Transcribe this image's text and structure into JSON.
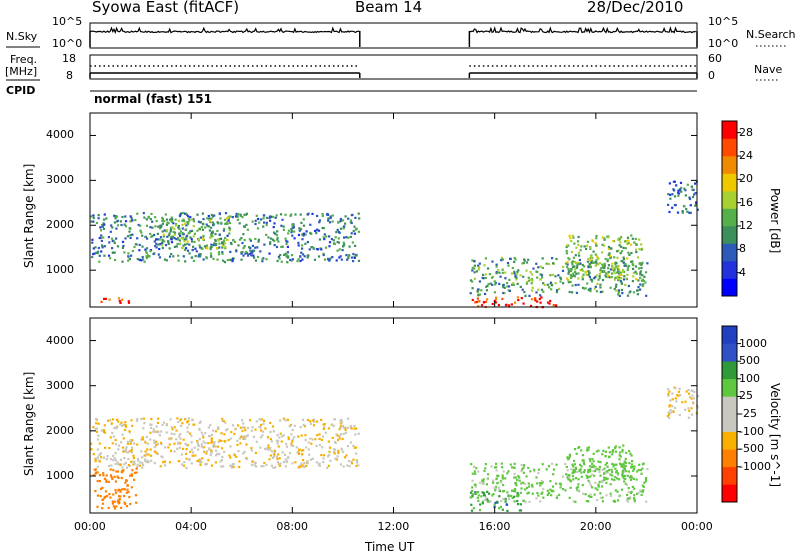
{
  "header": {
    "station": "Syowa East (fitACF)",
    "beam": "Beam 14",
    "date": "28/Dec/2010"
  },
  "top_panels": {
    "nsky_label": "N.Sky",
    "nsky_ticks": [
      "10^5",
      "10^0"
    ],
    "nsearch_label": "N.Search",
    "nsearch_ticks": [
      "10^5",
      "10^0"
    ],
    "freq_label": "Freq.",
    "freq_unit": "[MHz]",
    "freq_ticks": [
      "18",
      "8"
    ],
    "nave_label": "Nave",
    "nave_ticks": [
      "60",
      "0"
    ],
    "cpid_label": "CPID",
    "cpid_value": "normal (fast) 151"
  },
  "colors": {
    "power": [
      "#0000ff",
      "#2233dd",
      "#2d5ab8",
      "#3a8f5a",
      "#56b04a",
      "#a8d030",
      "#f0c800",
      "#f08a00",
      "#ff4a00",
      "#ff0000"
    ],
    "velocity": [
      "#ff0000",
      "#ff4000",
      "#ff8000",
      "#f8b000",
      "#c8c8c0",
      "#c8c8c0",
      "#60c840",
      "#2e9a3a",
      "#3050c8",
      "#2040c0"
    ],
    "axis": "#000000"
  },
  "chart_data": [
    {
      "type": "heatmap",
      "title": "Power",
      "xlabel": "Time UT",
      "ylabel": "Slant Range [km]",
      "x_range": [
        "00:00",
        "24:00"
      ],
      "ylim": [
        180,
        4500
      ],
      "x_ticks": [
        "00:00",
        "04:00",
        "08:00",
        "12:00",
        "16:00",
        "20:00",
        "00:00"
      ],
      "y_ticks": [
        1000,
        2000,
        3000,
        4000
      ],
      "colorbar": {
        "label": "Power [dB]",
        "ticks": [
          4,
          8,
          12,
          16,
          20,
          24,
          28
        ],
        "range": [
          0,
          30
        ]
      },
      "data_gaps": [
        [
          "10:40",
          "15:00"
        ]
      ],
      "regions": [
        {
          "t": [
            0.0,
            10.6
          ],
          "r": [
            1200,
            2300
          ],
          "value": 10
        },
        {
          "t": [
            0.3,
            1.5
          ],
          "r": [
            250,
            400
          ],
          "value": 26
        },
        {
          "t": [
            2.8,
            5.5
          ],
          "r": [
            1500,
            2200
          ],
          "value": 14
        },
        {
          "t": [
            15.0,
            18.5
          ],
          "r": [
            200,
            420
          ],
          "value": 28
        },
        {
          "t": [
            15.0,
            22.0
          ],
          "r": [
            450,
            1300
          ],
          "value": 12
        },
        {
          "t": [
            18.8,
            21.8
          ],
          "r": [
            800,
            1800
          ],
          "value": 14
        },
        {
          "t": [
            22.8,
            24.0
          ],
          "r": [
            2300,
            3000
          ],
          "value": 8
        }
      ]
    },
    {
      "type": "heatmap",
      "title": "Velocity",
      "xlabel": "Time UT",
      "ylabel": "Slant Range [km]",
      "x_range": [
        "00:00",
        "24:00"
      ],
      "ylim": [
        180,
        4500
      ],
      "x_ticks": [
        "00:00",
        "04:00",
        "08:00",
        "12:00",
        "16:00",
        "20:00",
        "00:00"
      ],
      "y_ticks": [
        1000,
        2000,
        3000,
        4000
      ],
      "colorbar": {
        "label": "Velocity [m s^-1]",
        "ticks": [
          "1000",
          "500",
          "100",
          "25",
          "-25",
          "-100",
          "-500",
          "-1000"
        ]
      },
      "data_gaps": [
        [
          "10:40",
          "15:00"
        ]
      ],
      "regions": [
        {
          "t": [
            0.0,
            10.6
          ],
          "r": [
            1200,
            2300
          ],
          "value": 0
        },
        {
          "t": [
            0.1,
            1.8
          ],
          "r": [
            300,
            1200
          ],
          "value": -300
        },
        {
          "t": [
            15.0,
            17.0
          ],
          "r": [
            250,
            700
          ],
          "value": 700
        },
        {
          "t": [
            15.0,
            22.0
          ],
          "r": [
            450,
            1300
          ],
          "value": 150
        },
        {
          "t": [
            18.8,
            21.5
          ],
          "r": [
            900,
            1700
          ],
          "value": 200
        },
        {
          "t": [
            22.8,
            24.0
          ],
          "r": [
            2300,
            3000
          ],
          "value": 0
        }
      ]
    }
  ]
}
